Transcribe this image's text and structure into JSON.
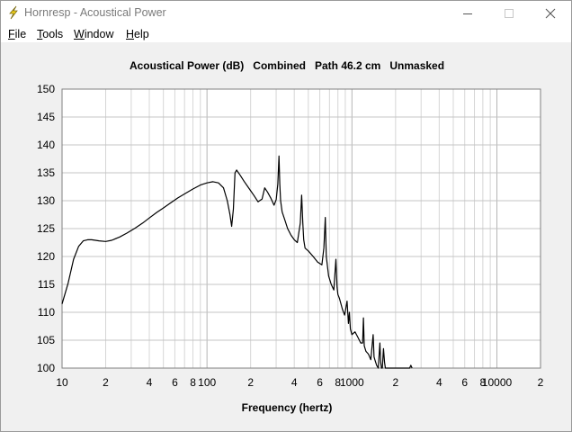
{
  "window": {
    "title": "Hornresp - Acoustical Power",
    "icon": "lightning-bolt-icon",
    "controls": [
      "minimize-icon",
      "maximize-icon",
      "close-icon"
    ]
  },
  "menu": {
    "items": [
      {
        "label": "File",
        "accel": "F",
        "rest": "ile"
      },
      {
        "label": "Tools",
        "accel": "T",
        "rest": "ools"
      },
      {
        "label": "Window",
        "accel": "W",
        "rest": "indow"
      },
      {
        "label": "Help",
        "accel": "H",
        "rest": "elp"
      }
    ]
  },
  "plot": {
    "title": "Acoustical Power (dB)   Combined   Path 46.2 cm   Unmasked"
  },
  "chart_data": {
    "type": "line",
    "xlabel": "Frequency (hertz)",
    "ylabel": "",
    "x_scale": "log",
    "xlim": [
      10,
      20000
    ],
    "ylim": [
      100,
      150
    ],
    "y_ticks": [
      100,
      105,
      110,
      115,
      120,
      125,
      130,
      135,
      140,
      145,
      150
    ],
    "x_tick_labels": [
      {
        "value": 10,
        "label": "10"
      },
      {
        "value": 20,
        "label": "2"
      },
      {
        "value": 40,
        "label": "4"
      },
      {
        "value": 60,
        "label": "6"
      },
      {
        "value": 80,
        "label": "8"
      },
      {
        "value": 100,
        "label": "100"
      },
      {
        "value": 200,
        "label": "2"
      },
      {
        "value": 400,
        "label": "4"
      },
      {
        "value": 600,
        "label": "6"
      },
      {
        "value": 800,
        "label": "8"
      },
      {
        "value": 1000,
        "label": "1000"
      },
      {
        "value": 2000,
        "label": "2"
      },
      {
        "value": 4000,
        "label": "4"
      },
      {
        "value": 6000,
        "label": "6"
      },
      {
        "value": 8000,
        "label": "8"
      },
      {
        "value": 10000,
        "label": "10000"
      },
      {
        "value": 20000,
        "label": "2"
      }
    ],
    "grid": true,
    "series": [
      {
        "color": "#000000",
        "x": [
          10,
          11,
          12,
          13,
          14,
          15,
          16,
          17,
          18,
          20,
          22,
          25,
          28,
          32,
          36,
          40,
          45,
          50,
          56,
          63,
          71,
          80,
          90,
          100,
          110,
          120,
          130,
          138,
          144,
          148,
          152,
          156,
          160,
          170,
          180,
          195,
          210,
          225,
          240,
          250,
          262,
          275,
          290,
          300,
          308,
          314,
          318,
          322,
          330,
          345,
          360,
          380,
          400,
          420,
          440,
          450,
          458,
          465,
          475,
          500,
          540,
          580,
          620,
          640,
          655,
          665,
          690,
          720,
          750,
          775,
          790,
          800,
          820,
          860,
          890,
          925,
          945,
          960,
          975,
          1000,
          1050,
          1100,
          1150,
          1185,
          1200,
          1215,
          1250,
          1300,
          1350,
          1400,
          1420,
          1440,
          1480,
          1520,
          1560,
          1580,
          1600,
          1620,
          1650,
          1680,
          1700,
          1720,
          1740,
          1760,
          1780,
          1800,
          2500,
          2550,
          2600
        ],
        "y": [
          111.5,
          115.2,
          119.5,
          121.8,
          122.8,
          123.0,
          123.0,
          122.9,
          122.8,
          122.7,
          122.9,
          123.5,
          124.2,
          125.1,
          126.0,
          126.9,
          127.9,
          128.7,
          129.6,
          130.5,
          131.3,
          132.1,
          132.8,
          133.2,
          133.4,
          133.2,
          132.3,
          130.0,
          127.5,
          125.4,
          128.5,
          135.0,
          135.5,
          134.5,
          133.5,
          132.2,
          131.0,
          129.8,
          130.3,
          132.3,
          131.5,
          130.5,
          129.2,
          130.2,
          133.0,
          138.0,
          133.0,
          130.0,
          128.0,
          126.5,
          125.0,
          123.8,
          123.0,
          122.5,
          126.0,
          131.0,
          126.0,
          123.0,
          121.5,
          121.0,
          120.0,
          119.0,
          118.5,
          121.5,
          127.0,
          120.0,
          116.5,
          115.0,
          114.0,
          119.5,
          114.5,
          113.2,
          112.5,
          110.5,
          109.5,
          112.0,
          108.0,
          110.0,
          107.0,
          106.0,
          106.5,
          105.5,
          104.5,
          104.5,
          109.0,
          104.0,
          103.0,
          102.5,
          101.5,
          106.0,
          102.0,
          101.5,
          100.5,
          100.0,
          104.5,
          101.0,
          100.0,
          100.0,
          103.5,
          101.0,
          100.0,
          100.0,
          100.0,
          100.0,
          100.0,
          100.0,
          100.0,
          100.5,
          100.0
        ]
      }
    ]
  }
}
